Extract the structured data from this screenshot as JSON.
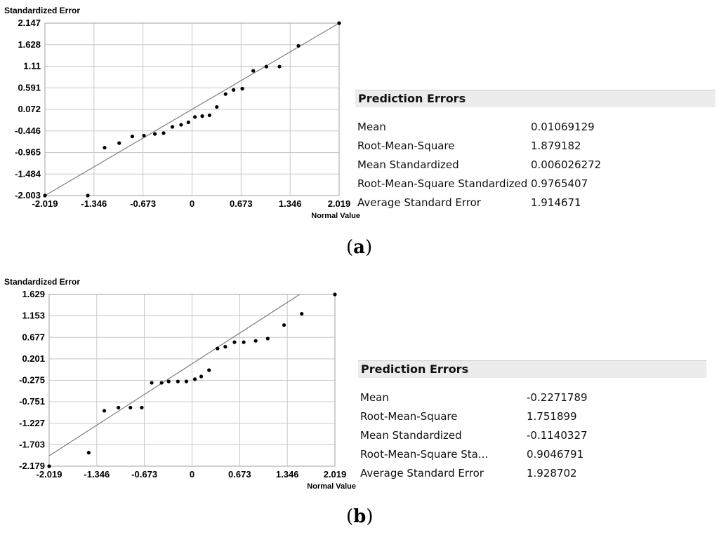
{
  "chart_data": [
    {
      "type": "scatter",
      "panel_label": "a",
      "ylabel": "Standardized Error",
      "xlabel": "Normal Value",
      "xlim": [
        -2.019,
        2.019
      ],
      "ylim": [
        -2.003,
        2.147
      ],
      "x_ticks": [
        "-2.019",
        "-1.346",
        "-0.673",
        "0",
        "0.673",
        "1.346",
        "2.019"
      ],
      "y_ticks": [
        "2.147",
        "1.628",
        "1.11",
        "0.591",
        "0.072",
        "-0.446",
        "-0.965",
        "-1.484",
        "-2.003"
      ],
      "grid": true,
      "reference_line": [
        [
          -2.019,
          -2.003
        ],
        [
          2.019,
          2.147
        ]
      ],
      "points": [
        [
          -2.019,
          -2.003
        ],
        [
          -1.43,
          -2.003
        ],
        [
          -1.2,
          -0.85
        ],
        [
          -1.0,
          -0.74
        ],
        [
          -0.82,
          -0.58
        ],
        [
          -0.66,
          -0.56
        ],
        [
          -0.51,
          -0.52
        ],
        [
          -0.39,
          -0.5
        ],
        [
          -0.27,
          -0.35
        ],
        [
          -0.15,
          -0.3
        ],
        [
          -0.05,
          -0.24
        ],
        [
          0.04,
          -0.11
        ],
        [
          0.14,
          -0.09
        ],
        [
          0.24,
          -0.07
        ],
        [
          0.34,
          0.13
        ],
        [
          0.46,
          0.44
        ],
        [
          0.57,
          0.54
        ],
        [
          0.69,
          0.57
        ],
        [
          0.84,
          1.0
        ],
        [
          1.02,
          1.1
        ],
        [
          1.2,
          1.1
        ],
        [
          1.46,
          1.6
        ],
        [
          2.019,
          2.147
        ]
      ],
      "prediction_errors": {
        "title": "Prediction Errors",
        "rows": [
          {
            "label": "Mean",
            "value": "0.01069129"
          },
          {
            "label": "Root-Mean-Square",
            "value": "1.879182"
          },
          {
            "label": "Mean Standardized",
            "value": "0.006026272"
          },
          {
            "label": "Root-Mean-Square Standardized",
            "value": "0.9765407"
          },
          {
            "label": "Average Standard Error",
            "value": "1.914671"
          }
        ]
      }
    },
    {
      "type": "scatter",
      "panel_label": "b",
      "ylabel": "Standardized Error",
      "xlabel": "Normal Value",
      "xlim": [
        -2.019,
        2.019
      ],
      "ylim": [
        -2.179,
        1.629
      ],
      "x_ticks": [
        "-2.019",
        "-1.346",
        "-0.673",
        "0",
        "0.673",
        "1.346",
        "2.019"
      ],
      "y_ticks": [
        "1.629",
        "1.153",
        "0.677",
        "0.201",
        "-0.275",
        "-0.751",
        "-1.227",
        "-1.703",
        "-2.179"
      ],
      "grid": true,
      "reference_line": [
        [
          -2.019,
          -1.95
        ],
        [
          1.52,
          1.629
        ]
      ],
      "points": [
        [
          -2.019,
          -2.179
        ],
        [
          -1.46,
          -1.88
        ],
        [
          -1.24,
          -0.95
        ],
        [
          -1.04,
          -0.88
        ],
        [
          -0.87,
          -0.88
        ],
        [
          -0.71,
          -0.88
        ],
        [
          -0.57,
          -0.33
        ],
        [
          -0.43,
          -0.33
        ],
        [
          -0.33,
          -0.3
        ],
        [
          -0.2,
          -0.3
        ],
        [
          -0.08,
          -0.3
        ],
        [
          0.04,
          -0.25
        ],
        [
          0.13,
          -0.19
        ],
        [
          0.24,
          -0.05
        ],
        [
          0.36,
          0.43
        ],
        [
          0.47,
          0.47
        ],
        [
          0.6,
          0.57
        ],
        [
          0.73,
          0.57
        ],
        [
          0.9,
          0.6
        ],
        [
          1.07,
          0.65
        ],
        [
          1.3,
          0.95
        ],
        [
          1.55,
          1.2
        ],
        [
          2.019,
          1.629
        ]
      ],
      "prediction_errors": {
        "title": "Prediction Errors",
        "rows": [
          {
            "label": "Mean",
            "value": "-0.2271789"
          },
          {
            "label": "Root-Mean-Square",
            "value": "1.751899"
          },
          {
            "label": "Mean Standardized",
            "value": "-0.1140327"
          },
          {
            "label": "Root-Mean-Square Sta...",
            "value": "0.9046791"
          },
          {
            "label": "Average Standard Error",
            "value": "1.928702"
          }
        ]
      }
    }
  ],
  "colors": {
    "grid": "#c8c8c8",
    "frame": "#a0a0a0",
    "reference_line": "#7d7d7d",
    "point": "#000000",
    "stats_header_bg": "#ececec"
  }
}
